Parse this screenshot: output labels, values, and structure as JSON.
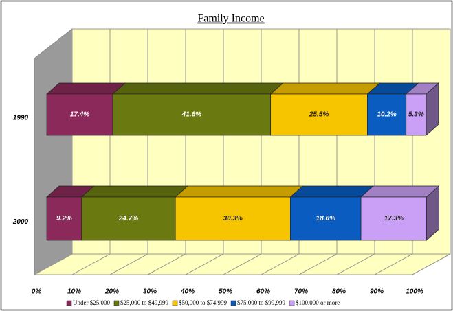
{
  "chart_data": {
    "type": "bar",
    "orientation": "horizontal",
    "stacked": true,
    "three_d": true,
    "title": "Family Income",
    "categories": [
      "1990",
      "2000"
    ],
    "series": [
      {
        "name": "Under $25,000",
        "color": "#8b2a5a",
        "values": [
          17.4,
          9.2
        ],
        "value_labels": [
          "17.4%",
          "9.2%"
        ]
      },
      {
        "name": "$25,000 to $49,999",
        "color": "#6b7a10",
        "values": [
          41.6,
          24.7
        ],
        "value_labels": [
          "41.6%",
          "24.7%"
        ]
      },
      {
        "name": "$50,000 to $74,999",
        "color": "#f7c400",
        "values": [
          25.5,
          30.3
        ],
        "value_labels": [
          "25.5%",
          "30.3%"
        ]
      },
      {
        "name": "$75,000 to $99,999",
        "color": "#0a5cc0",
        "values": [
          10.2,
          18.6
        ],
        "value_labels": [
          "10.2%",
          "18.6%"
        ]
      },
      {
        "name": "$100,000 or more",
        "color": "#c9a0f5",
        "values": [
          5.3,
          17.3
        ],
        "value_labels": [
          "5.3%",
          "17.3%"
        ]
      }
    ],
    "xlim": [
      0,
      100
    ],
    "xticks": [
      {
        "value": 0,
        "label": "0%"
      },
      {
        "value": 10,
        "label": "10%"
      },
      {
        "value": 20,
        "label": "20%"
      },
      {
        "value": 30,
        "label": "30%"
      },
      {
        "value": 40,
        "label": "40%"
      },
      {
        "value": 50,
        "label": "50%"
      },
      {
        "value": 60,
        "label": "60%"
      },
      {
        "value": 70,
        "label": "70%"
      },
      {
        "value": 80,
        "label": "80%"
      },
      {
        "value": 90,
        "label": "90%"
      },
      {
        "value": 100,
        "label": "100%"
      }
    ],
    "grid": true,
    "legend": "bottom"
  }
}
